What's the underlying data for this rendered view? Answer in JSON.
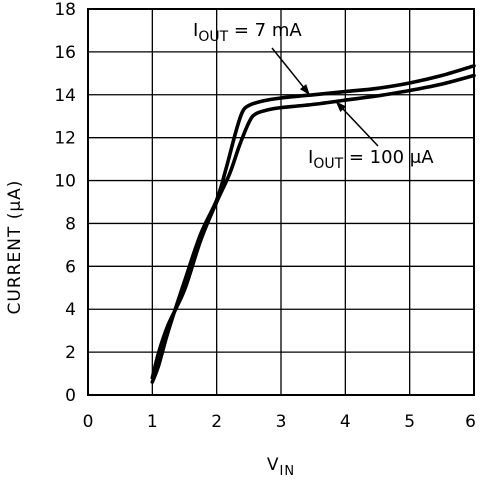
{
  "chart_data": {
    "type": "line",
    "title": "",
    "xlabel": {
      "main": "V",
      "sub": "IN"
    },
    "ylabel": "CURRENT (μA)",
    "xlim": [
      0,
      6
    ],
    "ylim": [
      0,
      18
    ],
    "xticks": [
      "0",
      "1",
      "2",
      "3",
      "4",
      "5",
      "6"
    ],
    "yticks": [
      "0",
      "2",
      "4",
      "6",
      "8",
      "10",
      "12",
      "14",
      "16",
      "18"
    ],
    "grid": true,
    "series": [
      {
        "name": "I_OUT = 7 mA",
        "x": [
          1.0,
          1.1,
          1.25,
          1.5,
          1.75,
          2.0,
          2.15,
          2.3,
          2.4,
          2.5,
          2.7,
          3.0,
          3.5,
          4.0,
          4.5,
          5.0,
          5.5,
          6.0
        ],
        "y": [
          0.6,
          1.4,
          3.0,
          5.3,
          7.5,
          9.1,
          10.6,
          12.3,
          13.2,
          13.5,
          13.7,
          13.85,
          14.0,
          14.15,
          14.3,
          14.55,
          14.9,
          15.35
        ]
      },
      {
        "name": "I_OUT = 100 μA",
        "x": [
          1.0,
          1.1,
          1.25,
          1.5,
          1.75,
          2.0,
          2.2,
          2.35,
          2.5,
          2.6,
          2.8,
          3.0,
          3.5,
          4.0,
          4.5,
          5.0,
          5.5,
          6.0
        ],
        "y": [
          0.8,
          2.0,
          3.3,
          4.9,
          7.2,
          9.0,
          10.3,
          11.6,
          12.7,
          13.1,
          13.3,
          13.4,
          13.55,
          13.75,
          13.95,
          14.2,
          14.5,
          14.9
        ]
      }
    ],
    "annotations": [
      {
        "text_main": "I",
        "text_sub": "OUT",
        "text_rest": " = 7 mA",
        "target_x": 3.45,
        "target_y": 13.98
      },
      {
        "text_main": "I",
        "text_sub": "OUT",
        "text_rest": " = 100 μA",
        "target_x": 3.85,
        "target_y": 13.7
      }
    ]
  }
}
